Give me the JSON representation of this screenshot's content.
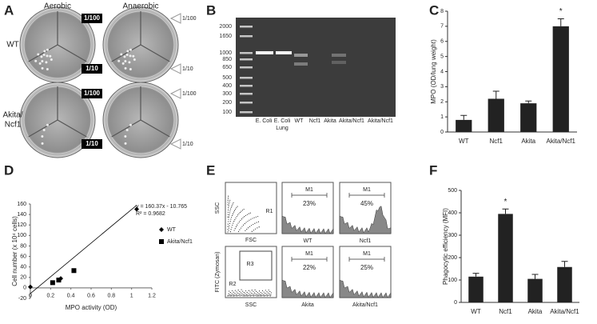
{
  "figure": {
    "letters": [
      "A",
      "B",
      "C",
      "D",
      "E",
      "F"
    ],
    "a": {
      "columns": [
        "Aerobic",
        "Anaerobic"
      ],
      "rows": [
        "WT",
        [
          "Akita/",
          "Ncf1"
        ]
      ],
      "dilutions": [
        "1/100",
        "1/10"
      ]
    },
    "b": {
      "ladder": [
        "2000",
        "1650",
        "1000",
        "850",
        "650",
        "500",
        "400",
        "300",
        "200",
        "100"
      ],
      "lanes": [
        [
          "E. Coli"
        ],
        [
          "E. Coli",
          "Lung"
        ],
        [
          "WT"
        ],
        [
          "Ncf1"
        ],
        [
          "Akita"
        ],
        [
          "Akita/Ncf1"
        ],
        [
          "Akita/Ncf1"
        ]
      ]
    },
    "e": {
      "top_y": "SSC",
      "top_x": "FSC",
      "top_gate": "R1",
      "bottom_y": "FITC (Zymosan)",
      "bottom_x": "SSC",
      "bottom_gates": [
        "R3",
        "R2"
      ],
      "marker": "M1",
      "histograms": [
        {
          "label": "WT",
          "percent": "23%"
        },
        {
          "label": "Ncf1",
          "percent": "45%"
        },
        {
          "label": "Akita",
          "percent": "22%"
        },
        {
          "label": "Akita/Ncf1",
          "percent": "25%"
        }
      ]
    }
  },
  "chart_data": [
    {
      "type": "bar",
      "ylabel": "MPO (OD/lung weight)",
      "categories": [
        "WT",
        "Ncf1",
        "Akita",
        "Akita/Ncf1"
      ],
      "values": [
        0.8,
        2.2,
        1.9,
        7.0
      ],
      "errors": [
        0.3,
        0.5,
        0.15,
        0.5
      ],
      "color": "#222222",
      "ylim": [
        0,
        8
      ],
      "yticks": [
        0,
        1,
        2,
        3,
        4,
        5,
        6,
        7,
        8
      ],
      "annotation": {
        "text": "*",
        "category": "Akita/Ncf1"
      }
    },
    {
      "type": "scatter",
      "xlabel": "MPO activity (OD)",
      "ylabel": "Cell number (x 10⁴ cells)",
      "xlim": [
        0,
        1.2
      ],
      "xticks": [
        0,
        0.2,
        0.4,
        0.6,
        0.8,
        1,
        1.2
      ],
      "ylim": [
        -20,
        160
      ],
      "yticks": [
        -20,
        0,
        20,
        40,
        60,
        80,
        100,
        120,
        140,
        160
      ],
      "series": [
        {
          "name": "WT",
          "marker": "diamond",
          "color": "#000000",
          "x": [
            0,
            0.3,
            1.05
          ],
          "values": [
            2,
            18,
            150
          ]
        },
        {
          "name": "Akita/Ncf1",
          "marker": "square",
          "color": "#000000",
          "x": [
            0.22,
            0.28,
            0.43
          ],
          "values": [
            10,
            15,
            33
          ]
        }
      ],
      "trendline": {
        "equation": "y = 160.37x - 10.765",
        "r2": "R² = 0.9682",
        "slope": 160.37,
        "intercept": -10.765
      }
    },
    {
      "type": "bar",
      "ylabel": "Phagocytic efficiency (MFI)",
      "categories": [
        "WT",
        "Ncf1",
        "Akita",
        "Akita/Ncf1"
      ],
      "values": [
        115,
        395,
        105,
        158
      ],
      "errors": [
        15,
        22,
        20,
        25
      ],
      "color": "#222222",
      "ylim": [
        0,
        500
      ],
      "yticks": [
        0,
        100,
        200,
        300,
        400,
        500
      ],
      "annotation": {
        "text": "*",
        "category": "Ncf1"
      }
    }
  ]
}
